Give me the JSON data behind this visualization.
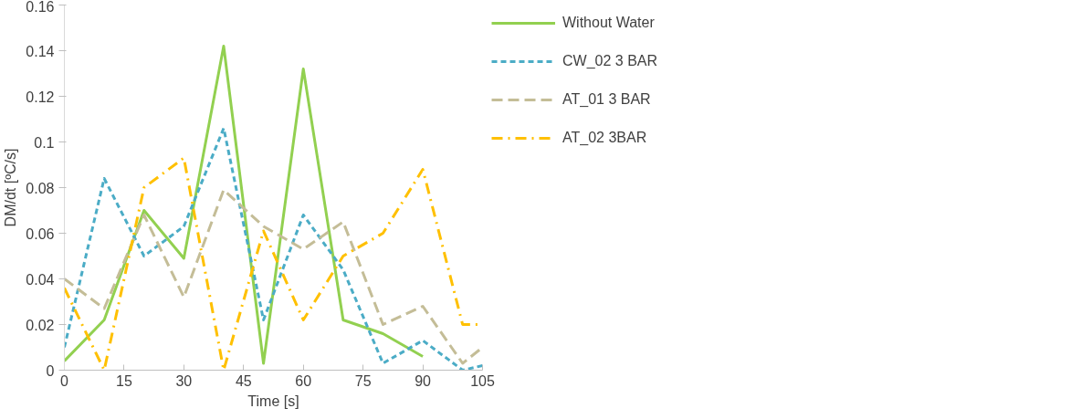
{
  "chart_data": {
    "type": "line",
    "xlabel": "Time [s]",
    "ylabel": "DM/dt [ºC/s]",
    "x": [
      0,
      10,
      20,
      30,
      40,
      50,
      60,
      70,
      80,
      90,
      100,
      105
    ],
    "series": [
      {
        "name": "Without Water",
        "color": "#92d050",
        "line_style": "solid",
        "x": [
          0,
          10,
          20,
          30,
          40,
          50,
          60,
          70,
          80,
          90
        ],
        "values": [
          0.004,
          0.022,
          0.07,
          0.049,
          0.142,
          0.003,
          0.132,
          0.022,
          0.016,
          0.006
        ]
      },
      {
        "name": "CW_02 3 BAR",
        "color": "#4bacc6",
        "line_style": "dotted",
        "values": [
          0.01,
          0.084,
          0.05,
          0.063,
          0.106,
          0.022,
          0.068,
          0.044,
          0.003,
          0.013,
          0.0,
          0.002
        ]
      },
      {
        "name": "AT_01 3 BAR",
        "color": "#c4bd97",
        "line_style": "dashed",
        "values": [
          0.04,
          0.027,
          0.068,
          0.032,
          0.079,
          0.063,
          0.053,
          0.065,
          0.02,
          0.028,
          0.003,
          0.01
        ]
      },
      {
        "name": "AT_02 3BAR",
        "color": "#ffc000",
        "line_style": "dashdot",
        "values": [
          0.036,
          0.0,
          0.08,
          0.093,
          0.0,
          0.061,
          0.022,
          0.05,
          0.06,
          0.088,
          0.02,
          0.02
        ]
      }
    ],
    "xlim": [
      0,
      105
    ],
    "xticks": [
      0,
      15,
      30,
      45,
      60,
      75,
      90,
      105
    ],
    "ylim": [
      0,
      0.16
    ],
    "yticks": [
      0,
      0.02,
      0.04,
      0.06,
      0.08,
      0.1,
      0.12,
      0.14,
      0.16
    ],
    "grid": false,
    "legend": "right",
    "marker": "none"
  }
}
